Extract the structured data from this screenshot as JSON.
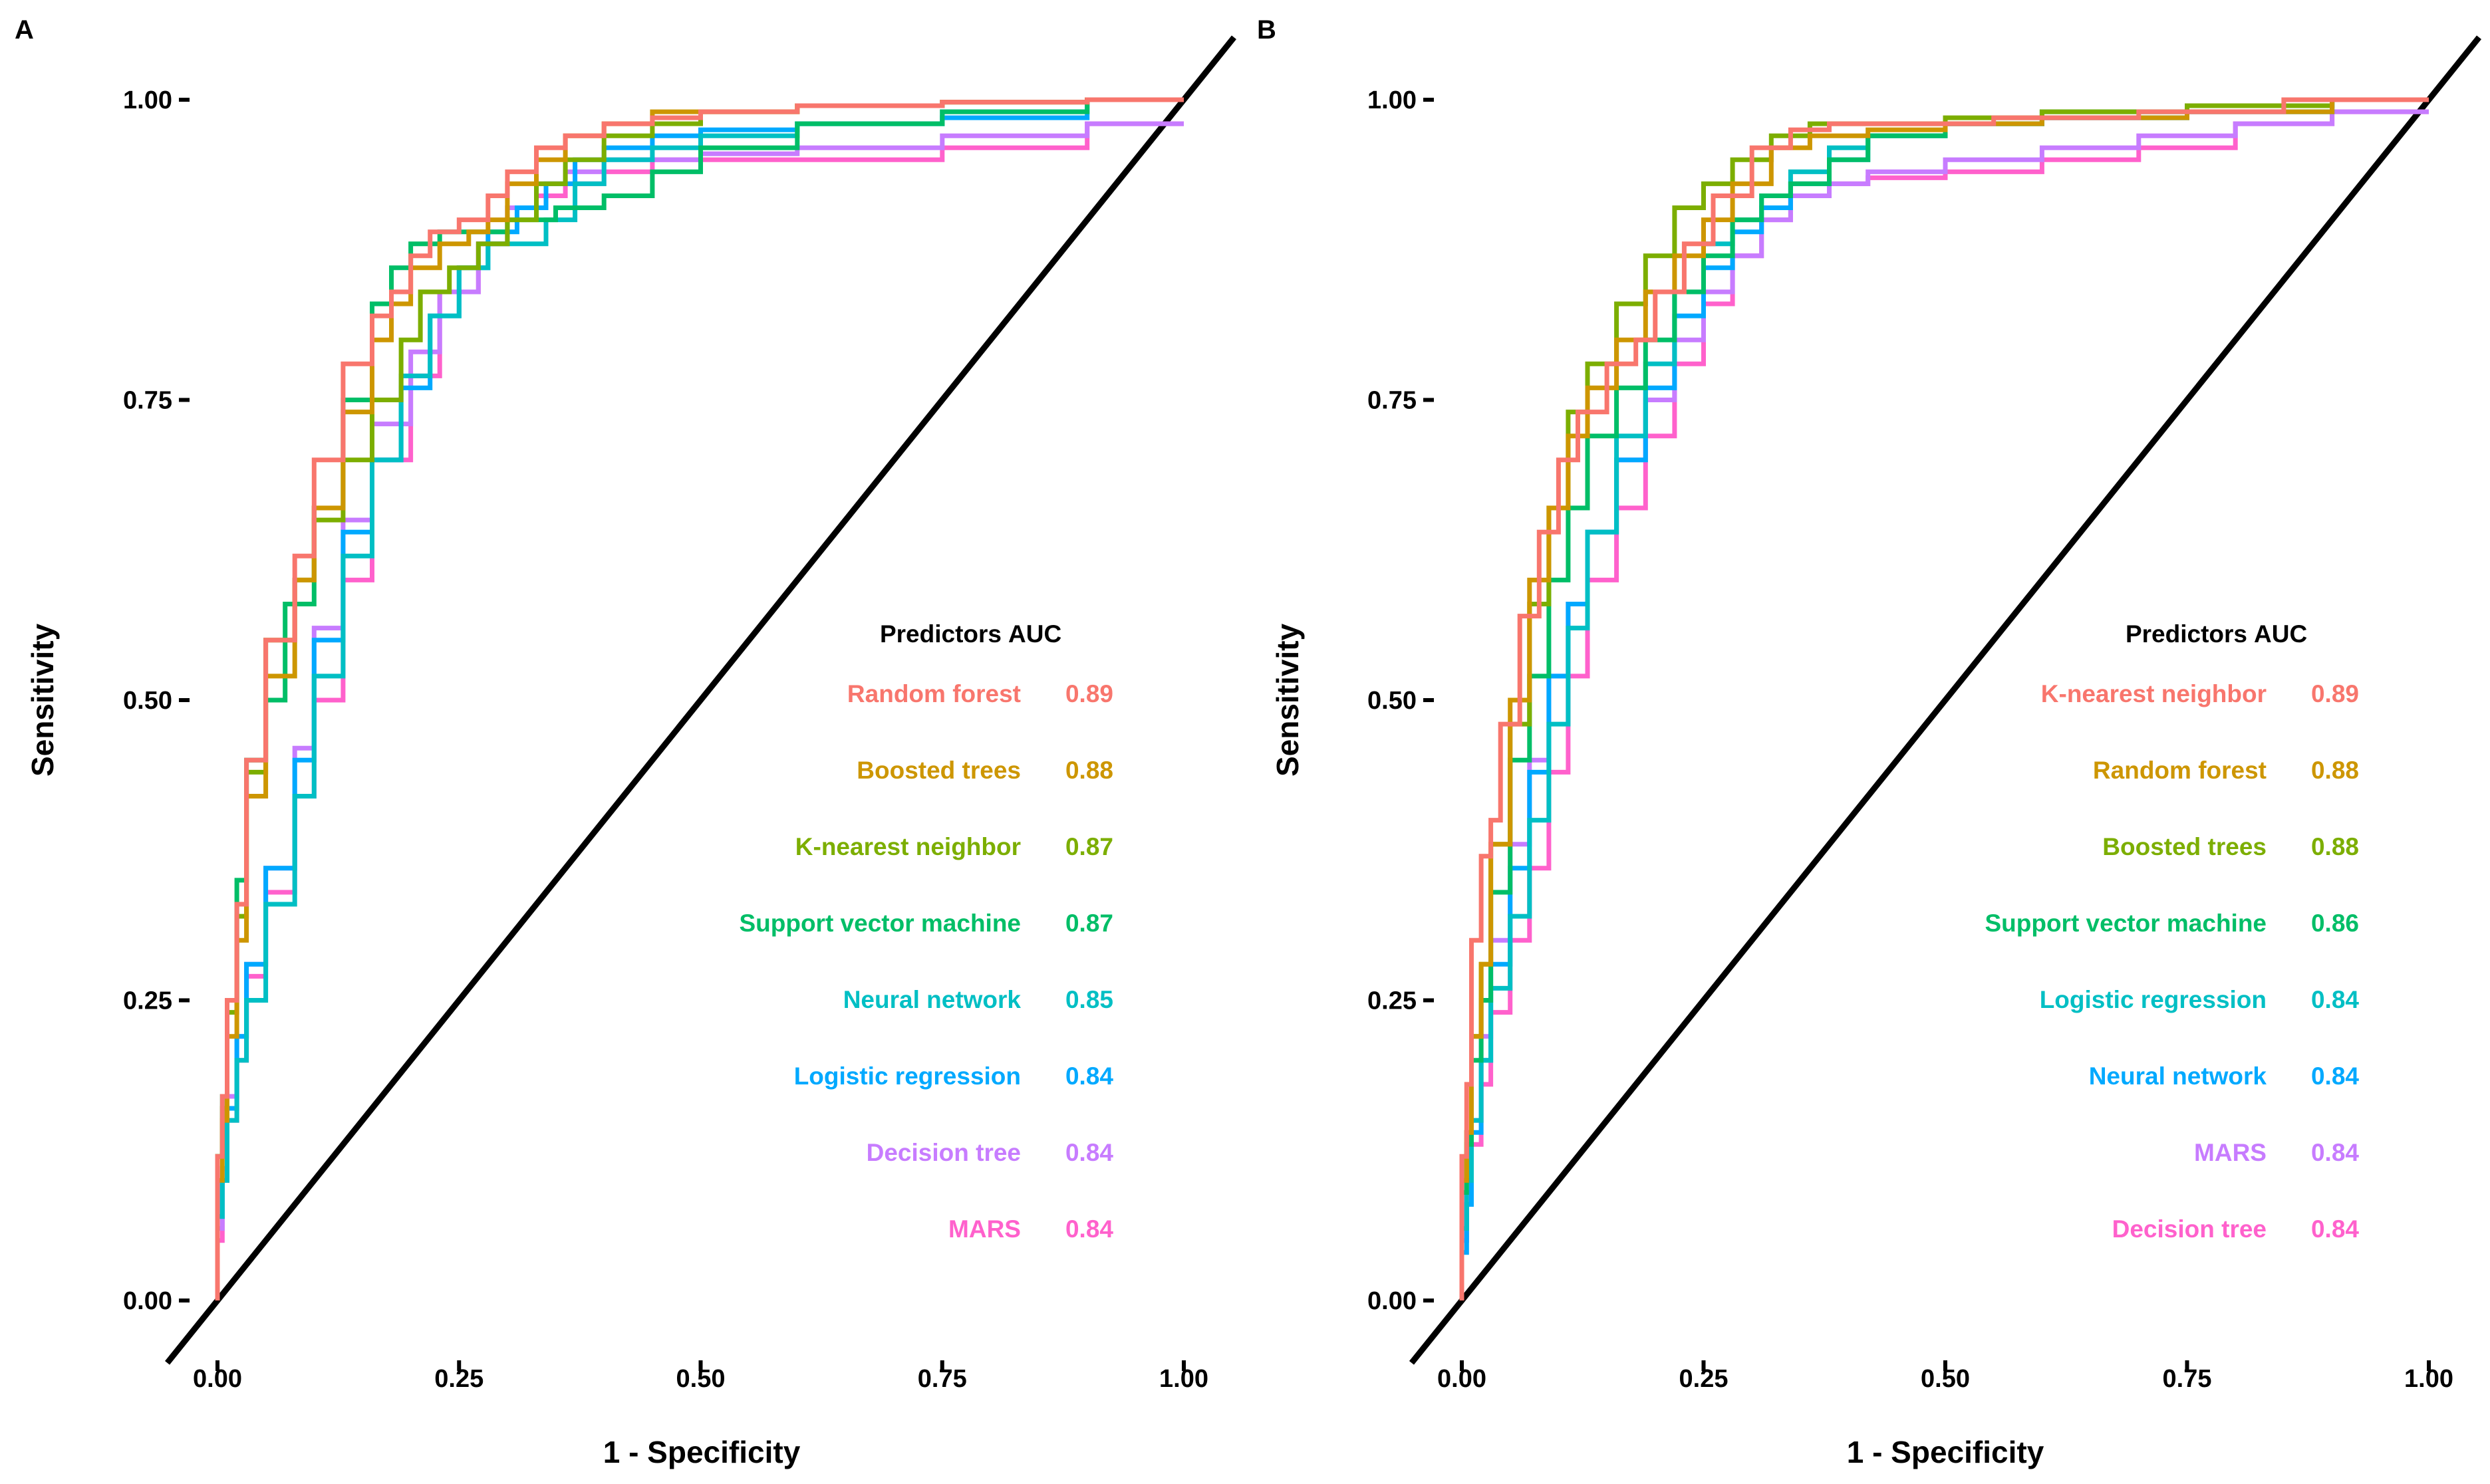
{
  "chart_data": [
    {
      "type": "line",
      "panel_label": "A",
      "xlabel": "1 - Specificity",
      "ylabel": "Sensitivity",
      "xlim": [
        0,
        1
      ],
      "ylim": [
        0,
        1
      ],
      "x_ticks": [
        "0.00",
        "0.25",
        "0.50",
        "0.75",
        "1.00"
      ],
      "y_ticks": [
        "0.00",
        "0.25",
        "0.50",
        "0.75",
        "1.00"
      ],
      "grid": false,
      "reference_line": {
        "x": [
          -0.05,
          1.05
        ],
        "y": [
          -0.05,
          1.05
        ],
        "color": "#000000"
      },
      "legend": {
        "position": "bottom-right",
        "header_predictors": "Predictors",
        "header_auc": "AUC"
      },
      "series": [
        {
          "name": "Random forest",
          "auc": "0.89",
          "color": "#F8766D",
          "x": [
            0,
            0.005,
            0.01,
            0.02,
            0.03,
            0.05,
            0.08,
            0.1,
            0.13,
            0.16,
            0.18,
            0.2,
            0.22,
            0.25,
            0.28,
            0.3,
            0.33,
            0.36,
            0.4,
            0.45,
            0.5,
            0.6,
            0.75,
            0.9,
            1.0
          ],
          "y": [
            0,
            0.12,
            0.17,
            0.25,
            0.33,
            0.45,
            0.55,
            0.62,
            0.7,
            0.78,
            0.82,
            0.84,
            0.87,
            0.89,
            0.9,
            0.92,
            0.94,
            0.96,
            0.97,
            0.98,
            0.985,
            0.99,
            0.995,
            0.998,
            1.0
          ]
        },
        {
          "name": "Boosted trees",
          "auc": "0.88",
          "color": "#CD9600",
          "x": [
            0,
            0.005,
            0.01,
            0.02,
            0.03,
            0.05,
            0.08,
            0.1,
            0.13,
            0.16,
            0.18,
            0.2,
            0.23,
            0.26,
            0.28,
            0.3,
            0.33,
            0.36,
            0.4,
            0.45,
            0.5,
            0.6,
            0.75,
            0.9,
            1.0
          ],
          "y": [
            0,
            0.1,
            0.15,
            0.22,
            0.3,
            0.42,
            0.52,
            0.6,
            0.66,
            0.74,
            0.8,
            0.83,
            0.86,
            0.88,
            0.89,
            0.9,
            0.93,
            0.95,
            0.97,
            0.98,
            0.99,
            0.99,
            0.995,
            0.998,
            1.0
          ]
        },
        {
          "name": "K-nearest neighbor",
          "auc": "0.87",
          "color": "#7CAE00",
          "x": [
            0,
            0.005,
            0.01,
            0.02,
            0.03,
            0.05,
            0.08,
            0.1,
            0.13,
            0.16,
            0.19,
            0.21,
            0.24,
            0.27,
            0.3,
            0.33,
            0.36,
            0.4,
            0.45,
            0.5,
            0.6,
            0.75,
            0.9,
            1.0
          ],
          "y": [
            0,
            0.12,
            0.16,
            0.24,
            0.32,
            0.44,
            0.55,
            0.6,
            0.65,
            0.7,
            0.75,
            0.8,
            0.84,
            0.86,
            0.88,
            0.9,
            0.93,
            0.95,
            0.97,
            0.98,
            0.99,
            0.995,
            0.998,
            1.0
          ]
        },
        {
          "name": "Support vector machine",
          "auc": "0.87",
          "color": "#00BE67",
          "x": [
            0,
            0.005,
            0.01,
            0.02,
            0.03,
            0.05,
            0.07,
            0.1,
            0.13,
            0.16,
            0.18,
            0.2,
            0.23,
            0.26,
            0.3,
            0.35,
            0.4,
            0.45,
            0.5,
            0.6,
            0.75,
            0.9,
            1.0
          ],
          "y": [
            0,
            0.12,
            0.17,
            0.25,
            0.35,
            0.45,
            0.5,
            0.58,
            0.66,
            0.75,
            0.83,
            0.86,
            0.88,
            0.89,
            0.89,
            0.9,
            0.91,
            0.92,
            0.94,
            0.96,
            0.98,
            0.99,
            1.0
          ]
        },
        {
          "name": "Neural network",
          "auc": "0.85",
          "color": "#00BFC4",
          "x": [
            0,
            0.005,
            0.01,
            0.02,
            0.03,
            0.05,
            0.08,
            0.1,
            0.13,
            0.16,
            0.19,
            0.22,
            0.25,
            0.28,
            0.31,
            0.34,
            0.37,
            0.4,
            0.45,
            0.5,
            0.6,
            0.75,
            0.9,
            1.0
          ],
          "y": [
            0,
            0.07,
            0.1,
            0.15,
            0.2,
            0.25,
            0.33,
            0.42,
            0.52,
            0.62,
            0.7,
            0.77,
            0.82,
            0.86,
            0.88,
            0.88,
            0.9,
            0.93,
            0.95,
            0.96,
            0.97,
            0.98,
            0.99,
            1.0
          ]
        },
        {
          "name": "Logistic regression",
          "auc": "0.84",
          "color": "#00A9FF",
          "x": [
            0,
            0.005,
            0.01,
            0.02,
            0.03,
            0.05,
            0.08,
            0.1,
            0.13,
            0.16,
            0.19,
            0.22,
            0.25,
            0.28,
            0.31,
            0.34,
            0.37,
            0.4,
            0.45,
            0.5,
            0.6,
            0.75,
            0.9,
            1.0
          ],
          "y": [
            0,
            0.07,
            0.1,
            0.16,
            0.22,
            0.28,
            0.36,
            0.45,
            0.55,
            0.64,
            0.7,
            0.76,
            0.82,
            0.86,
            0.89,
            0.91,
            0.93,
            0.95,
            0.96,
            0.97,
            0.975,
            0.98,
            0.985,
            1.0
          ]
        },
        {
          "name": "Decision tree",
          "auc": "0.84",
          "color": "#C77CFF",
          "x": [
            0,
            0.005,
            0.01,
            0.02,
            0.03,
            0.05,
            0.08,
            0.1,
            0.13,
            0.16,
            0.2,
            0.23,
            0.27,
            0.3,
            0.33,
            0.36,
            0.4,
            0.45,
            0.5,
            0.6,
            0.75,
            0.9,
            1.0
          ],
          "y": [
            0,
            0.06,
            0.11,
            0.17,
            0.22,
            0.28,
            0.36,
            0.46,
            0.56,
            0.65,
            0.73,
            0.79,
            0.84,
            0.88,
            0.91,
            0.93,
            0.94,
            0.95,
            0.95,
            0.955,
            0.96,
            0.97,
            0.98
          ]
        },
        {
          "name": "MARS",
          "auc": "0.84",
          "color": "#FF61CC",
          "x": [
            0,
            0.005,
            0.01,
            0.02,
            0.03,
            0.05,
            0.08,
            0.1,
            0.13,
            0.16,
            0.2,
            0.23,
            0.27,
            0.3,
            0.33,
            0.36,
            0.4,
            0.45,
            0.5,
            0.6,
            0.75,
            0.9,
            1.0
          ],
          "y": [
            0,
            0.05,
            0.1,
            0.15,
            0.2,
            0.27,
            0.34,
            0.42,
            0.5,
            0.6,
            0.7,
            0.77,
            0.84,
            0.88,
            0.91,
            0.92,
            0.93,
            0.94,
            0.95,
            0.95,
            0.95,
            0.96,
            0.98
          ]
        }
      ]
    },
    {
      "type": "line",
      "panel_label": "B",
      "xlabel": "1 - Specificity",
      "ylabel": "Sensitivity",
      "xlim": [
        0,
        1
      ],
      "ylim": [
        0,
        1
      ],
      "x_ticks": [
        "0.00",
        "0.25",
        "0.50",
        "0.75",
        "1.00"
      ],
      "y_ticks": [
        "0.00",
        "0.25",
        "0.50",
        "0.75",
        "1.00"
      ],
      "grid": false,
      "reference_line": {
        "x": [
          -0.05,
          1.05
        ],
        "y": [
          -0.05,
          1.05
        ],
        "color": "#000000"
      },
      "legend": {
        "position": "bottom-right",
        "header_predictors": "Predictors",
        "header_auc": "AUC"
      },
      "series": [
        {
          "name": "K-nearest neighbor",
          "auc": "0.89",
          "color": "#F8766D",
          "x": [
            0,
            0.005,
            0.01,
            0.02,
            0.03,
            0.04,
            0.06,
            0.08,
            0.1,
            0.12,
            0.15,
            0.18,
            0.2,
            0.23,
            0.26,
            0.3,
            0.34,
            0.38,
            0.45,
            0.55,
            0.7,
            0.85,
            1.0
          ],
          "y": [
            0,
            0.12,
            0.18,
            0.3,
            0.37,
            0.4,
            0.48,
            0.57,
            0.64,
            0.7,
            0.74,
            0.78,
            0.8,
            0.84,
            0.88,
            0.92,
            0.96,
            0.975,
            0.98,
            0.98,
            0.985,
            0.99,
            1.0
          ]
        },
        {
          "name": "Random forest",
          "auc": "0.88",
          "color": "#CD9600",
          "x": [
            0,
            0.005,
            0.01,
            0.02,
            0.03,
            0.05,
            0.07,
            0.09,
            0.11,
            0.13,
            0.16,
            0.19,
            0.22,
            0.25,
            0.28,
            0.32,
            0.36,
            0.42,
            0.5,
            0.6,
            0.75,
            0.9,
            1.0
          ],
          "y": [
            0,
            0.1,
            0.14,
            0.22,
            0.28,
            0.38,
            0.5,
            0.6,
            0.66,
            0.72,
            0.76,
            0.8,
            0.84,
            0.87,
            0.9,
            0.93,
            0.96,
            0.97,
            0.975,
            0.98,
            0.985,
            0.99,
            1.0
          ]
        },
        {
          "name": "Boosted trees",
          "auc": "0.88",
          "color": "#7CAE00",
          "x": [
            0,
            0.005,
            0.01,
            0.02,
            0.03,
            0.05,
            0.07,
            0.09,
            0.11,
            0.13,
            0.16,
            0.19,
            0.22,
            0.25,
            0.28,
            0.32,
            0.36,
            0.42,
            0.5,
            0.6,
            0.75,
            0.9,
            1.0
          ],
          "y": [
            0,
            0.1,
            0.14,
            0.22,
            0.28,
            0.38,
            0.48,
            0.58,
            0.66,
            0.74,
            0.78,
            0.83,
            0.87,
            0.91,
            0.93,
            0.95,
            0.97,
            0.98,
            0.98,
            0.985,
            0.99,
            0.995,
            1.0
          ]
        },
        {
          "name": "Support vector machine",
          "auc": "0.86",
          "color": "#00BE67",
          "x": [
            0,
            0.005,
            0.01,
            0.02,
            0.03,
            0.05,
            0.07,
            0.09,
            0.11,
            0.13,
            0.16,
            0.19,
            0.22,
            0.25,
            0.28,
            0.31,
            0.34,
            0.38,
            0.42,
            0.5,
            0.6,
            0.75,
            0.9,
            1.0
          ],
          "y": [
            0,
            0.09,
            0.13,
            0.2,
            0.25,
            0.34,
            0.45,
            0.52,
            0.6,
            0.66,
            0.72,
            0.76,
            0.8,
            0.84,
            0.87,
            0.9,
            0.92,
            0.93,
            0.95,
            0.97,
            0.98,
            0.99,
            0.995,
            1.0
          ]
        },
        {
          "name": "Logistic regression",
          "auc": "0.84",
          "color": "#00BFC4",
          "x": [
            0,
            0.005,
            0.01,
            0.02,
            0.03,
            0.05,
            0.07,
            0.09,
            0.11,
            0.13,
            0.16,
            0.19,
            0.22,
            0.25,
            0.28,
            0.31,
            0.34,
            0.38,
            0.42,
            0.5,
            0.6,
            0.75,
            0.9,
            1.0
          ],
          "y": [
            0,
            0.06,
            0.1,
            0.15,
            0.2,
            0.26,
            0.32,
            0.4,
            0.48,
            0.56,
            0.64,
            0.72,
            0.78,
            0.84,
            0.88,
            0.9,
            0.92,
            0.94,
            0.96,
            0.97,
            0.98,
            0.985,
            0.99,
            1.0
          ]
        },
        {
          "name": "Neural network",
          "auc": "0.84",
          "color": "#00A9FF",
          "x": [
            0,
            0.005,
            0.01,
            0.02,
            0.03,
            0.05,
            0.07,
            0.09,
            0.11,
            0.13,
            0.16,
            0.19,
            0.22,
            0.25,
            0.28,
            0.31,
            0.34,
            0.38,
            0.42,
            0.5,
            0.6,
            0.75,
            0.9,
            1.0
          ],
          "y": [
            0,
            0.04,
            0.08,
            0.14,
            0.2,
            0.28,
            0.36,
            0.44,
            0.52,
            0.58,
            0.64,
            0.7,
            0.76,
            0.82,
            0.86,
            0.89,
            0.91,
            0.93,
            0.95,
            0.97,
            0.98,
            0.985,
            0.99,
            1.0
          ]
        },
        {
          "name": "MARS",
          "auc": "0.84",
          "color": "#C77CFF",
          "x": [
            0,
            0.005,
            0.01,
            0.02,
            0.03,
            0.05,
            0.07,
            0.09,
            0.11,
            0.13,
            0.16,
            0.19,
            0.22,
            0.25,
            0.28,
            0.31,
            0.34,
            0.38,
            0.42,
            0.5,
            0.6,
            0.7,
            0.8,
            0.9,
            1.0
          ],
          "y": [
            0,
            0.05,
            0.09,
            0.15,
            0.22,
            0.3,
            0.38,
            0.45,
            0.52,
            0.58,
            0.64,
            0.7,
            0.75,
            0.8,
            0.84,
            0.87,
            0.9,
            0.92,
            0.93,
            0.94,
            0.95,
            0.96,
            0.97,
            0.98,
            0.99
          ]
        },
        {
          "name": "Decision tree",
          "auc": "0.84",
          "color": "#FF61CC",
          "x": [
            0,
            0.005,
            0.01,
            0.02,
            0.03,
            0.05,
            0.07,
            0.09,
            0.11,
            0.13,
            0.16,
            0.19,
            0.22,
            0.25,
            0.28,
            0.31,
            0.34,
            0.38,
            0.42,
            0.5,
            0.6,
            0.7,
            0.8,
            0.9,
            1.0
          ],
          "y": [
            0,
            0.05,
            0.09,
            0.13,
            0.18,
            0.24,
            0.3,
            0.36,
            0.44,
            0.52,
            0.6,
            0.66,
            0.72,
            0.78,
            0.83,
            0.87,
            0.9,
            0.92,
            0.93,
            0.935,
            0.94,
            0.95,
            0.96,
            0.98,
            0.99
          ]
        }
      ]
    }
  ]
}
